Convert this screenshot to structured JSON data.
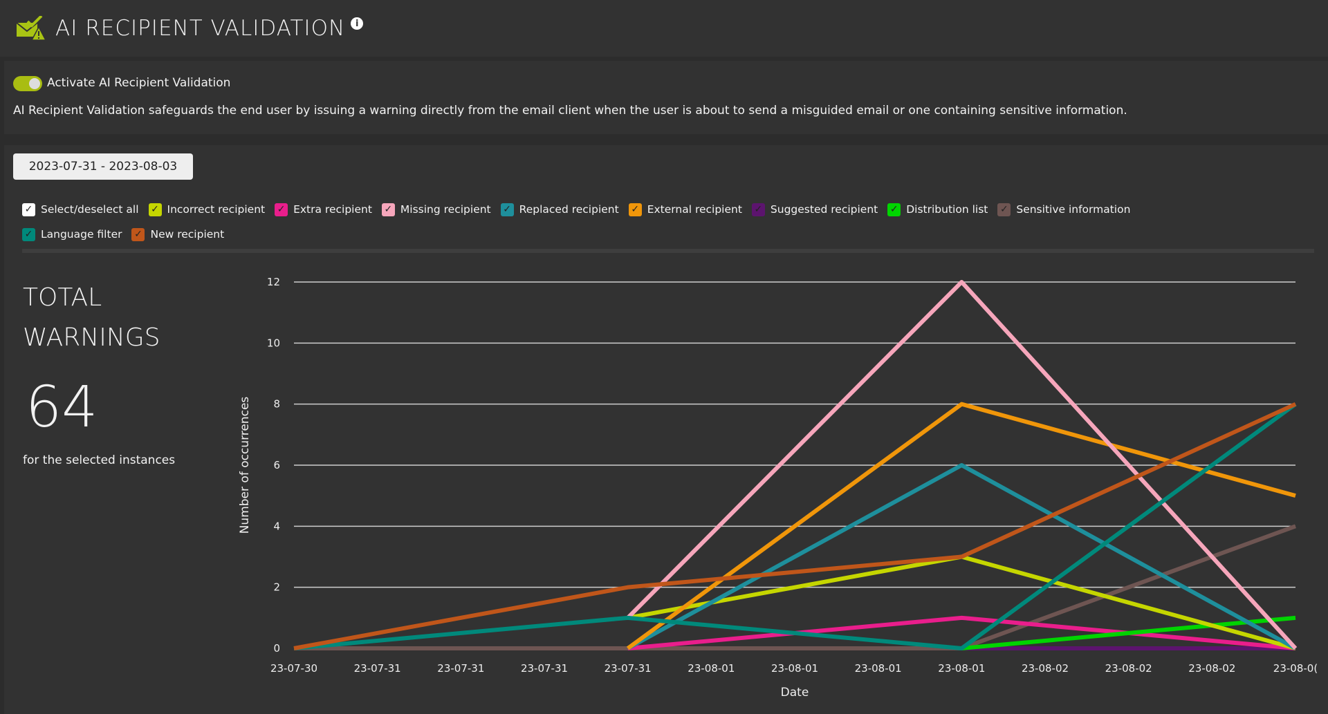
{
  "header": {
    "title": "AI RECIPIENT VALIDATION",
    "icon": "mail-check-warning-icon",
    "info_icon": "info-icon",
    "accent": "#a9c414"
  },
  "activation": {
    "toggle_label": "Activate AI Recipient Validation",
    "enabled": true,
    "description": "AI Recipient Validation safeguards the end user by issuing a warning directly from the email client when the user is about to send a misguided email or one containing sensitive information."
  },
  "date_range": "2023-07-31 - 2023-08-03",
  "legend": [
    {
      "label": "Select/deselect all",
      "color": "#ffffff",
      "checked": true
    },
    {
      "label": "Incorrect recipient",
      "color": "#c5d600",
      "checked": true
    },
    {
      "label": "Extra recipient",
      "color": "#e91e8c",
      "checked": true
    },
    {
      "label": "Missing recipient",
      "color": "#f6a6bb",
      "checked": true
    },
    {
      "label": "Replaced recipient",
      "color": "#1e8f9c",
      "checked": true
    },
    {
      "label": "External recipient",
      "color": "#f0960a",
      "checked": true
    },
    {
      "label": "Suggested recipient",
      "color": "#5c146e",
      "checked": true
    },
    {
      "label": "Distribution list",
      "color": "#00d400",
      "checked": true
    },
    {
      "label": "Sensitive information",
      "color": "#6e5552",
      "checked": true
    },
    {
      "label": "Language filter",
      "color": "#00897b",
      "checked": true
    },
    {
      "label": "New recipient",
      "color": "#c0561a",
      "checked": true
    }
  ],
  "summary": {
    "title_line1": "TOTAL",
    "title_line2": "WARNINGS",
    "value": "64",
    "subtitle": "for the selected instances"
  },
  "chart_data": {
    "type": "line",
    "xlabel": "Date",
    "ylabel": "Number of occurrences",
    "ylim": [
      0,
      12
    ],
    "grid": true,
    "yticks": [
      "0",
      "2",
      "4",
      "6",
      "8",
      "10",
      "12"
    ],
    "x": [
      "23-07-30",
      "23-07-31",
      "23-07-31",
      "23-07-31",
      "23-07-31",
      "23-08-01",
      "23-08-01",
      "23-08-01",
      "23-08-01",
      "23-08-02",
      "23-08-02",
      "23-08-02",
      "23-08-0("
    ],
    "series": [
      {
        "name": "Suggested recipient",
        "color": "#5c146e",
        "values": [
          0,
          null,
          null,
          null,
          0,
          null,
          null,
          null,
          0,
          null,
          null,
          null,
          0
        ]
      },
      {
        "name": "Sensitive information",
        "color": "#6e5552",
        "values": [
          0,
          null,
          null,
          null,
          0,
          null,
          null,
          null,
          0,
          null,
          null,
          null,
          4
        ]
      },
      {
        "name": "Extra recipient",
        "color": "#e91e8c",
        "values": [
          null,
          null,
          null,
          null,
          0,
          null,
          null,
          null,
          1,
          null,
          null,
          null,
          0
        ]
      },
      {
        "name": "Distribution list",
        "color": "#00d400",
        "values": [
          null,
          null,
          null,
          null,
          null,
          null,
          null,
          null,
          0,
          null,
          null,
          null,
          1
        ]
      },
      {
        "name": "Incorrect recipient",
        "color": "#c5d600",
        "values": [
          null,
          null,
          null,
          null,
          1,
          null,
          null,
          null,
          3,
          null,
          null,
          null,
          0
        ]
      },
      {
        "name": "Replaced recipient",
        "color": "#1e8f9c",
        "values": [
          null,
          null,
          null,
          null,
          0,
          null,
          null,
          null,
          6,
          null,
          null,
          null,
          0
        ]
      },
      {
        "name": "External recipient",
        "color": "#f0960a",
        "values": [
          null,
          null,
          null,
          null,
          0,
          null,
          null,
          null,
          8,
          null,
          null,
          null,
          5
        ]
      },
      {
        "name": "Missing recipient",
        "color": "#f6a6bb",
        "values": [
          null,
          null,
          null,
          null,
          1,
          null,
          null,
          null,
          12,
          null,
          null,
          null,
          0
        ]
      },
      {
        "name": "Language filter",
        "color": "#00897b",
        "values": [
          0,
          null,
          null,
          null,
          1,
          null,
          null,
          null,
          0,
          null,
          null,
          null,
          8
        ]
      },
      {
        "name": "New recipient",
        "color": "#c0561a",
        "values": [
          0,
          null,
          null,
          null,
          2,
          null,
          null,
          null,
          3,
          null,
          null,
          null,
          8
        ]
      }
    ]
  }
}
